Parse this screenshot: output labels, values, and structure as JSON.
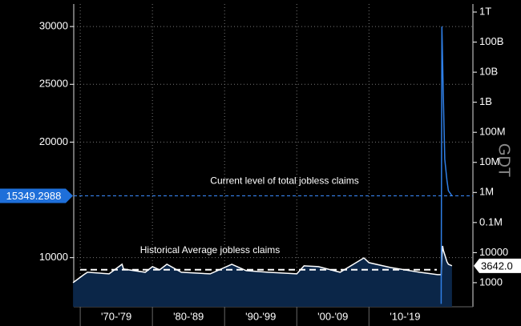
{
  "chart_data": {
    "type": "line",
    "y2label": "GDT",
    "x": [
      1969,
      1970.5,
      1971,
      1974,
      1975.8,
      1976,
      1979,
      1980,
      1981,
      1982,
      1984,
      1988,
      1991,
      1993,
      1996,
      2000,
      2001,
      2003,
      2006,
      2009.3,
      2010,
      2013,
      2017,
      2019.5,
      2020.0,
      2020.1,
      2020.2,
      2020.3,
      2020.5,
      2020.8,
      2021,
      2021.5
    ],
    "xlim": [
      1969.1,
      2024.4
    ],
    "xticks": [
      {
        "value": 1970,
        "label": "'70-'79"
      },
      {
        "value": 1980,
        "label": "'80-'89"
      },
      {
        "value": 1990,
        "label": "'90-'99"
      },
      {
        "value": 2000,
        "label": "'00-'09"
      },
      {
        "value": 2010,
        "label": "'10-'19"
      }
    ],
    "ylim": [
      5750,
      31950
    ],
    "yticks": [
      10000,
      20000,
      25000,
      30000
    ],
    "y2lim": [
      158,
      1850000000000
    ],
    "y2log": true,
    "y2ticks": [
      {
        "value": 1000000000000,
        "label": "1T"
      },
      {
        "value": 100000000000,
        "label": "100B"
      },
      {
        "value": 10000000000,
        "label": "10B"
      },
      {
        "value": 1000000000,
        "label": "1B"
      },
      {
        "value": 100000000,
        "label": "100M"
      },
      {
        "value": 10000000,
        "label": "10M"
      },
      {
        "value": 1000000,
        "label": "1M"
      },
      {
        "value": 100000,
        "label": "0.1M"
      },
      10000,
      1000
    ],
    "grid": true,
    "series": [
      {
        "name": "Jobless claims",
        "axis": "y2",
        "color": "#ffffff",
        "fill": "#0b2648",
        "values": [
          1000,
          1845,
          2218,
          1962,
          4090,
          2833,
          2218,
          3403,
          2664,
          4090,
          2218,
          1962,
          4090,
          2505,
          2218,
          1962,
          3620,
          3403,
          2218,
          6676,
          4624,
          3200,
          2218,
          1845,
          1845,
          8000,
          16720,
          12000,
          8530,
          5000,
          4090,
          3642
        ],
        "value_labels": [
          null,
          null,
          null,
          null,
          null,
          null,
          null,
          null,
          null,
          null,
          null,
          null,
          null,
          null,
          null,
          null,
          null,
          null,
          null,
          null,
          null,
          null,
          null,
          null,
          null,
          null,
          null,
          null,
          null,
          null,
          null,
          "3642.0"
        ]
      },
      {
        "name": "Total jobless claims",
        "axis": "y",
        "color": "#2f7fe6",
        "values": [
          null,
          null,
          null,
          null,
          null,
          null,
          null,
          null,
          null,
          null,
          null,
          null,
          null,
          null,
          null,
          null,
          null,
          null,
          null,
          null,
          null,
          null,
          null,
          null,
          6000,
          30000,
          27000,
          24000,
          18500,
          16700,
          15800,
          15349.2988
        ]
      }
    ],
    "reference_lines": [
      {
        "label": "Current level of total jobless claims",
        "value": 15349.2988,
        "axis": "y",
        "color": "#3b8cff"
      },
      {
        "label": "Historical Average jobless claims",
        "value": 2700,
        "axis": "y2",
        "color": "#ffffff"
      }
    ]
  }
}
